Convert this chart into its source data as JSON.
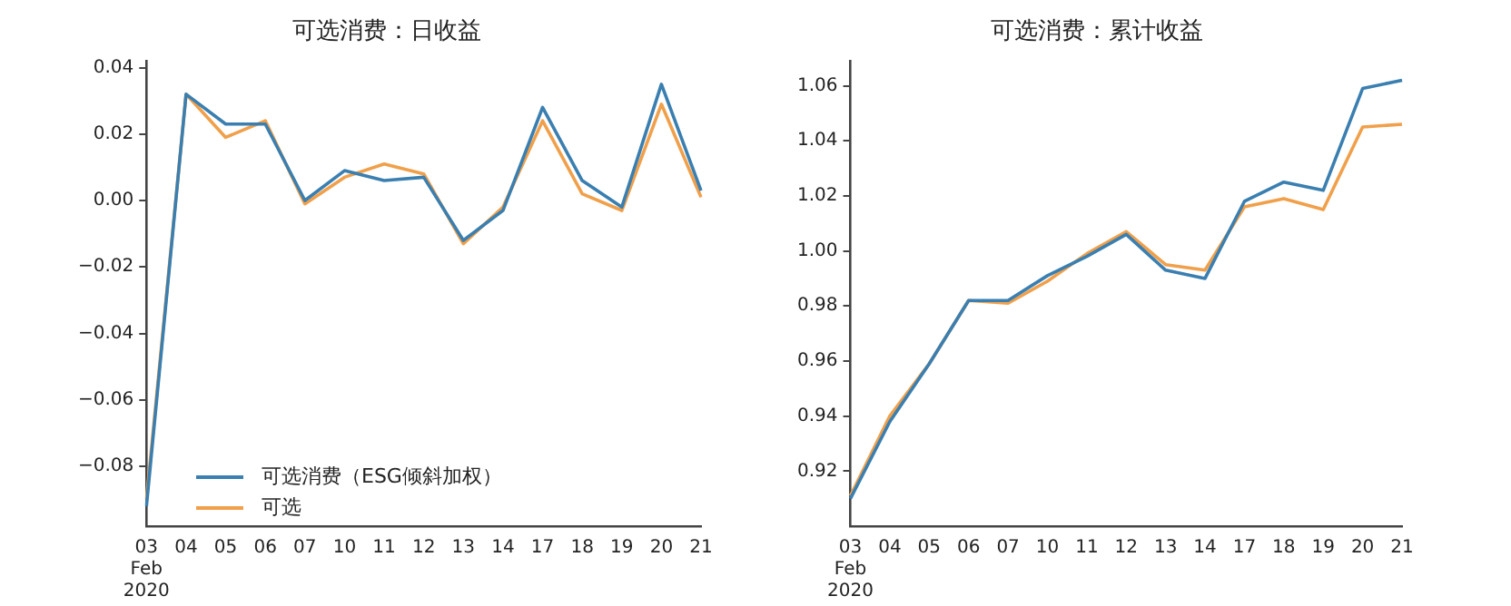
{
  "chart_data": [
    {
      "type": "line",
      "title": "可选消费：日收益",
      "categories": [
        "03\nFeb\n2020",
        "04",
        "05",
        "06",
        "07",
        "10",
        "11",
        "12",
        "13",
        "14",
        "17",
        "18",
        "19",
        "20",
        "21"
      ],
      "series": [
        {
          "name": "可选消费（ESG倾斜加权）",
          "color": "#3a7fb0",
          "values": [
            -0.092,
            0.032,
            0.023,
            0.023,
            0.0,
            0.009,
            0.006,
            0.007,
            -0.012,
            -0.003,
            0.028,
            0.006,
            -0.002,
            0.035,
            0.003
          ]
        },
        {
          "name": "可选",
          "color": "#f0a04b",
          "values": [
            -0.09,
            0.032,
            0.019,
            0.024,
            -0.001,
            0.007,
            0.011,
            0.008,
            -0.013,
            -0.002,
            0.024,
            0.002,
            -0.003,
            0.029,
            0.001
          ]
        }
      ],
      "ylim": [
        -0.098,
        0.042
      ],
      "yticks": [
        -0.08,
        -0.06,
        -0.04,
        -0.02,
        {
          "value": 0,
          "label": "0.00"
        },
        0.02,
        0.04
      ],
      "grid": false,
      "legend": "bottom left",
      "marker": "none",
      "line_style": "solid"
    },
    {
      "type": "line",
      "title": "可选消费：累计收益",
      "categories": [
        "03\nFeb\n2020",
        "04",
        "05",
        "06",
        "07",
        "10",
        "11",
        "12",
        "13",
        "14",
        "17",
        "18",
        "19",
        "20",
        "21"
      ],
      "series": [
        {
          "color": "#3a7fb0",
          "values": [
            0.91,
            0.938,
            0.959,
            0.982,
            0.982,
            0.991,
            0.998,
            1.006,
            0.993,
            0.99,
            1.018,
            1.025,
            1.022,
            1.059,
            1.062
          ]
        },
        {
          "color": "#f0a04b",
          "values": [
            0.911,
            0.94,
            0.959,
            0.982,
            0.981,
            0.989,
            0.999,
            1.007,
            0.995,
            0.993,
            1.016,
            1.019,
            1.015,
            1.045,
            1.046
          ]
        }
      ],
      "ylim": [
        0.9,
        1.069
      ],
      "yticks": [
        0.92,
        0.94,
        0.96,
        0.98,
        {
          "value": 1,
          "label": "1.00"
        },
        1.02,
        1.04,
        1.06
      ],
      "grid": false,
      "marker": "none",
      "line_style": "solid"
    }
  ]
}
